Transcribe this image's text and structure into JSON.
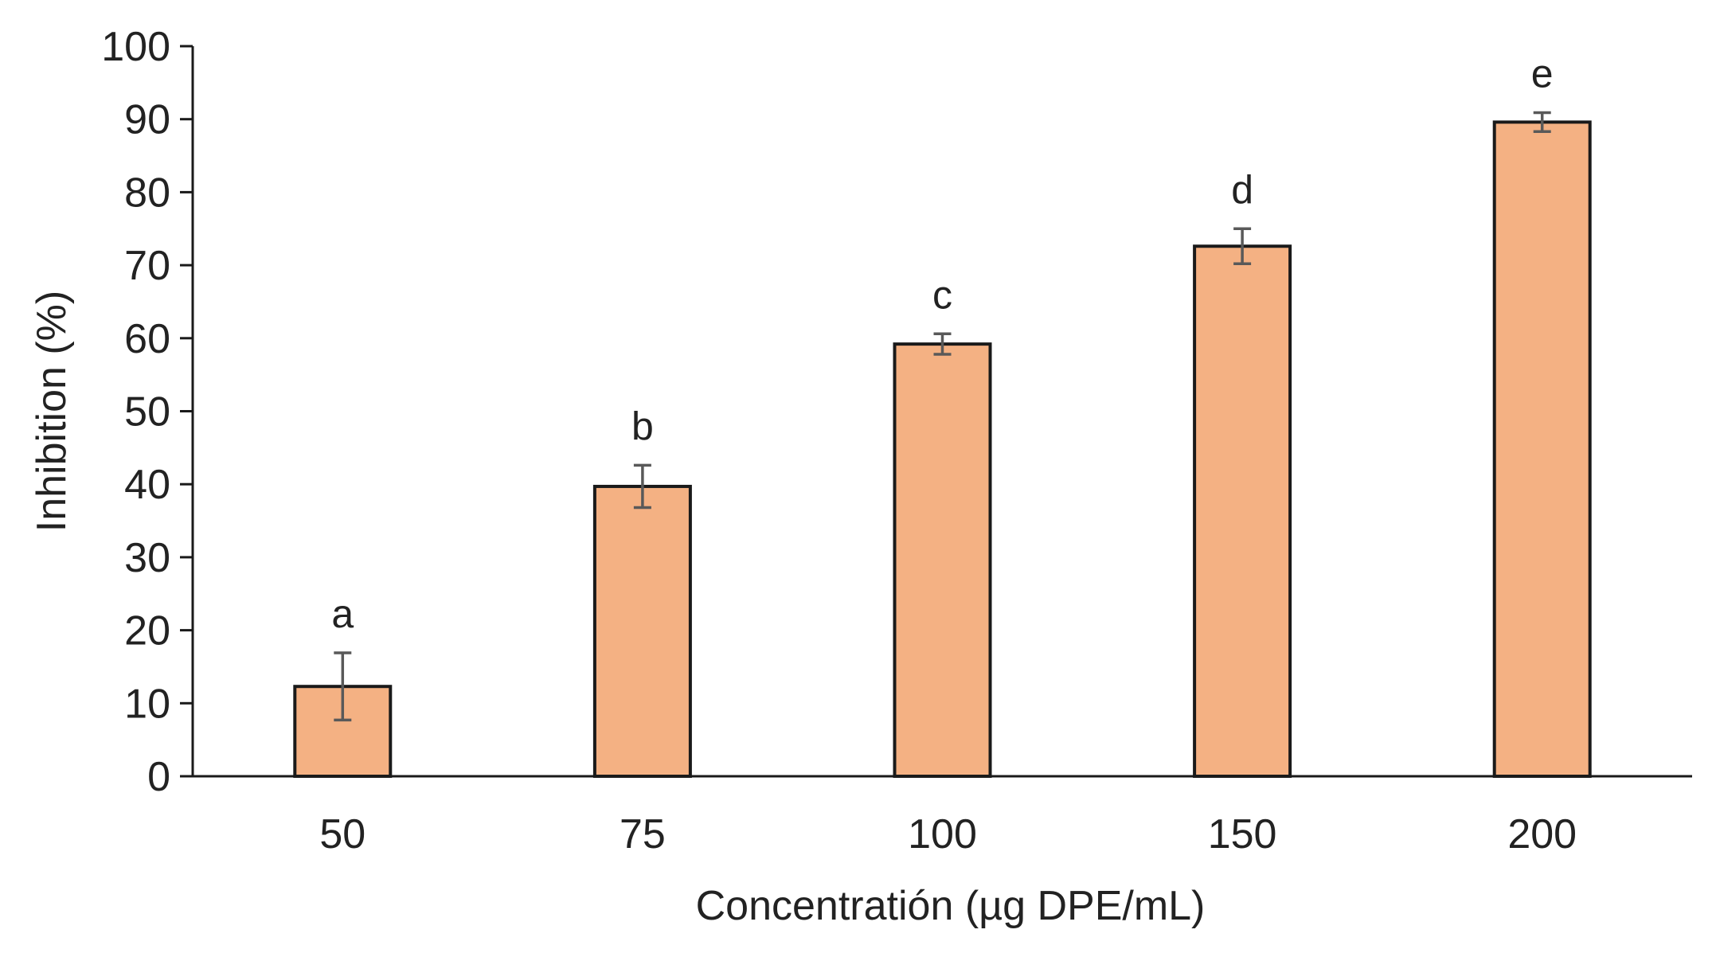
{
  "chart_data": {
    "type": "bar",
    "title": "",
    "xlabel": "Concentratión (µg DPE/mL)",
    "ylabel": "Inhibition (%)",
    "categories": [
      "50",
      "75",
      "100",
      "150",
      "200"
    ],
    "values": [
      12.3,
      39.7,
      59.2,
      72.6,
      89.6
    ],
    "errors": [
      4.6,
      2.9,
      1.4,
      2.4,
      1.3
    ],
    "significance_labels": [
      "a",
      "b",
      "c",
      "d",
      "e"
    ],
    "ylim": [
      0,
      100
    ],
    "yticks": [
      0,
      10,
      20,
      30,
      40,
      50,
      60,
      70,
      80,
      90,
      100
    ],
    "grid": false,
    "legend": "none",
    "bar_color": "#F4B183",
    "bar_edge_color": "#1a1a1a",
    "error_bar_color": "#595959",
    "axis_color": "#1a1a1a"
  }
}
